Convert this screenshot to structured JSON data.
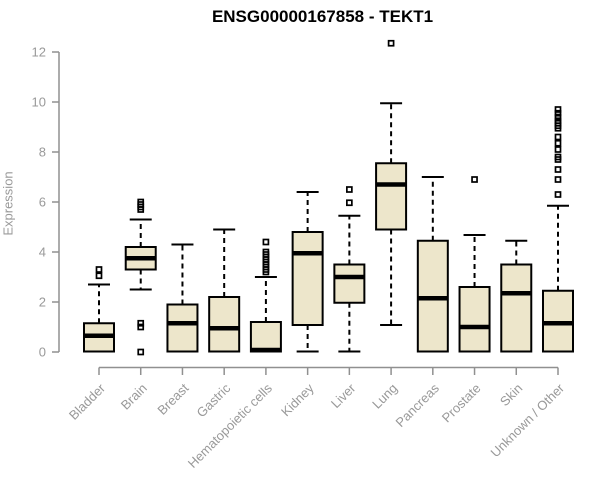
{
  "title": "ENSG00000167858 - TEKT1",
  "colors": {
    "box_fill": "#ede6cb",
    "box_stroke": "#000000",
    "median": "#000000",
    "whisker": "#000000",
    "outlier": "#000000",
    "axis": "#909090",
    "label": "#999999",
    "title": "#000000"
  },
  "chart_data": {
    "type": "boxplot",
    "title": "ENSG00000167858 - TEKT1",
    "xlabel": "",
    "ylabel": "Expression",
    "ylim": [
      0,
      12.4
    ],
    "yticks": [
      0,
      2,
      4,
      6,
      8,
      10,
      12
    ],
    "grid": false,
    "categories": [
      "Bladder",
      "Brain",
      "Breast",
      "Gastric",
      "Hematopoietic cells",
      "Kidney",
      "Liver",
      "Lung",
      "Pancreas",
      "Prostate",
      "Skin",
      "Unknown / Other"
    ],
    "series": [
      {
        "name": "Bladder",
        "whisker_low": 0.02,
        "q1": 0.02,
        "median": 0.65,
        "q3": 1.15,
        "whisker_high": 2.7,
        "outliers": [
          3.05,
          3.3
        ]
      },
      {
        "name": "Brain",
        "whisker_low": 2.5,
        "q1": 3.3,
        "median": 3.75,
        "q3": 4.2,
        "whisker_high": 5.3,
        "outliers": [
          0.0,
          1.0,
          1.15,
          5.7,
          5.8,
          5.9,
          6.0
        ]
      },
      {
        "name": "Breast",
        "whisker_low": 0.02,
        "q1": 0.02,
        "median": 1.15,
        "q3": 1.9,
        "whisker_high": 4.3,
        "outliers": []
      },
      {
        "name": "Gastric",
        "whisker_low": 0.02,
        "q1": 0.02,
        "median": 0.95,
        "q3": 2.2,
        "whisker_high": 4.9,
        "outliers": []
      },
      {
        "name": "Hematopoietic cells",
        "whisker_low": 0.02,
        "q1": 0.02,
        "median": 0.08,
        "q3": 1.2,
        "whisker_high": 3.0,
        "outliers": [
          3.2,
          3.3,
          3.4,
          3.5,
          3.6,
          3.7,
          3.8,
          3.9,
          4.0,
          4.4
        ]
      },
      {
        "name": "Kidney",
        "whisker_low": 0.02,
        "q1": 1.08,
        "median": 3.95,
        "q3": 4.8,
        "whisker_high": 6.4,
        "outliers": []
      },
      {
        "name": "Liver",
        "whisker_low": 0.02,
        "q1": 1.97,
        "median": 3.0,
        "q3": 3.5,
        "whisker_high": 5.45,
        "outliers": [
          5.97,
          6.5
        ]
      },
      {
        "name": "Lung",
        "whisker_low": 1.08,
        "q1": 4.9,
        "median": 6.7,
        "q3": 7.55,
        "whisker_high": 9.95,
        "outliers": [
          12.35
        ]
      },
      {
        "name": "Pancreas",
        "whisker_low": 0.02,
        "q1": 0.02,
        "median": 2.15,
        "q3": 4.45,
        "whisker_high": 7.0,
        "outliers": []
      },
      {
        "name": "Prostate",
        "whisker_low": 0.02,
        "q1": 0.02,
        "median": 1.0,
        "q3": 2.6,
        "whisker_high": 4.68,
        "outliers": [
          6.9
        ]
      },
      {
        "name": "Skin",
        "whisker_low": 0.02,
        "q1": 0.02,
        "median": 2.35,
        "q3": 3.5,
        "whisker_high": 4.45,
        "outliers": []
      },
      {
        "name": "Unknown / Other",
        "whisker_low": 0.02,
        "q1": 0.02,
        "median": 1.15,
        "q3": 2.45,
        "whisker_high": 5.85,
        "outliers": [
          6.3,
          6.9,
          7.3,
          7.7,
          7.8,
          8.1,
          8.35,
          8.6,
          8.95,
          9.05,
          9.15,
          9.25,
          9.4,
          9.55,
          9.7
        ]
      }
    ]
  }
}
